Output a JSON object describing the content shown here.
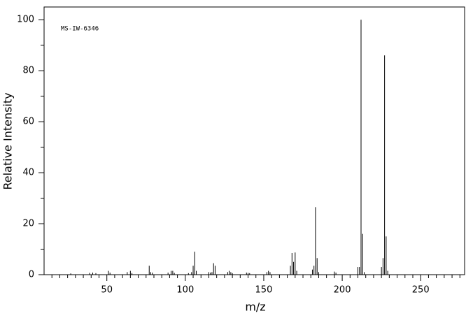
{
  "chart_data": {
    "type": "stick",
    "annotation": "MS-IW-6346",
    "x_label": "m/z",
    "y_label": "Relative Intensity",
    "color": "#000000",
    "xlim": [
      10,
      278
    ],
    "ylim": [
      0,
      105
    ],
    "xticks": [
      50,
      100,
      150,
      200,
      250
    ],
    "xminorticks": [
      15,
      20,
      25,
      30,
      35,
      40,
      45,
      55,
      60,
      65,
      70,
      75,
      80,
      85,
      90,
      95,
      105,
      110,
      115,
      120,
      125,
      130,
      135,
      140,
      145,
      155,
      160,
      165,
      170,
      175,
      180,
      185,
      190,
      195,
      205,
      210,
      215,
      220,
      225,
      230,
      235,
      240,
      245,
      255,
      260,
      265,
      270,
      275
    ],
    "yticks": [
      0,
      20,
      40,
      60,
      80,
      100
    ],
    "yminorticks": [
      10,
      30,
      50,
      70,
      90
    ],
    "x": [
      27,
      39,
      41,
      43,
      51,
      52,
      63,
      65,
      66,
      77,
      78,
      79,
      89,
      91,
      92,
      93,
      102,
      104,
      105,
      106,
      107,
      115,
      116,
      117,
      118,
      119,
      127,
      128,
      129,
      130,
      139,
      140,
      141,
      152,
      153,
      154,
      167,
      168,
      169,
      170,
      171,
      181,
      182,
      183,
      184,
      185,
      195,
      196,
      210,
      211,
      212,
      213,
      214,
      225,
      226,
      227,
      228,
      229
    ],
    "values": [
      0.5,
      0.7,
      0.8,
      0.6,
      1.5,
      0.8,
      1.0,
      1.5,
      0.6,
      3.5,
      1.0,
      0.8,
      0.8,
      1.5,
      1.5,
      0.7,
      0.6,
      1.0,
      3.5,
      9.0,
      1.5,
      1.0,
      0.8,
      1.0,
      4.5,
      3.5,
      1.0,
      1.5,
      1.0,
      0.6,
      0.8,
      0.7,
      0.6,
      1.0,
      1.5,
      1.0,
      3.5,
      8.5,
      5.0,
      8.7,
      1.5,
      2.0,
      3.5,
      26.5,
      6.5,
      1.0,
      1.2,
      0.8,
      3.0,
      3.0,
      100,
      16,
      1.0,
      3.0,
      6.5,
      86,
      15,
      1.5
    ]
  }
}
